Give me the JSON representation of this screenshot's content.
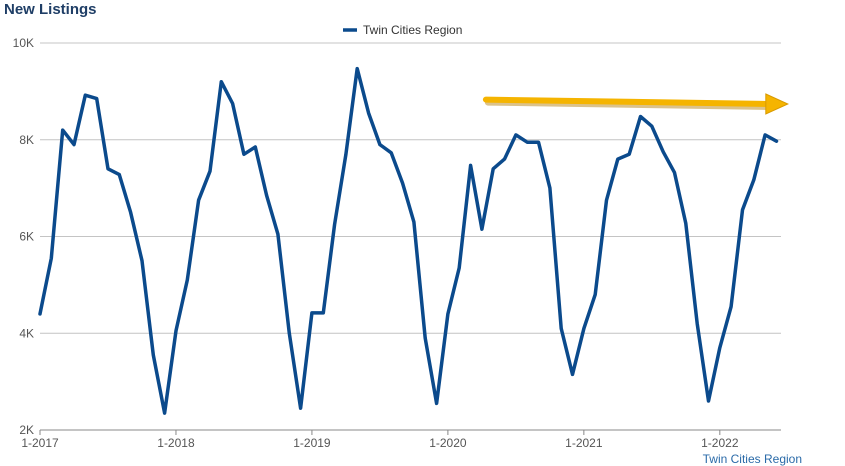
{
  "chart_data": {
    "type": "line",
    "title": "New Listings",
    "source": "Twin Cities Region",
    "xlabel": "",
    "ylabel": "",
    "ylim": [
      2000,
      10000
    ],
    "y_ticks": [
      {
        "value": 2000,
        "label": "2K"
      },
      {
        "value": 4000,
        "label": "4K"
      },
      {
        "value": 6000,
        "label": "6K"
      },
      {
        "value": 8000,
        "label": "8K"
      },
      {
        "value": 10000,
        "label": "10K"
      }
    ],
    "x_ticks": [
      {
        "index": 0,
        "label": "1-2017"
      },
      {
        "index": 12,
        "label": "1-2018"
      },
      {
        "index": 24,
        "label": "1-2019"
      },
      {
        "index": 36,
        "label": "1-2020"
      },
      {
        "index": 48,
        "label": "1-2021"
      },
      {
        "index": 60,
        "label": "1-2022"
      }
    ],
    "grid": true,
    "legend_position": "top-center",
    "series": [
      {
        "name": "Twin Cities Region",
        "color": "#0b4a8c",
        "x": [
          "1-2017",
          "2-2017",
          "3-2017",
          "4-2017",
          "5-2017",
          "6-2017",
          "7-2017",
          "8-2017",
          "9-2017",
          "10-2017",
          "11-2017",
          "12-2017",
          "1-2018",
          "2-2018",
          "3-2018",
          "4-2018",
          "5-2018",
          "6-2018",
          "7-2018",
          "8-2018",
          "9-2018",
          "10-2018",
          "11-2018",
          "12-2018",
          "1-2019",
          "2-2019",
          "3-2019",
          "4-2019",
          "5-2019",
          "6-2019",
          "7-2019",
          "8-2019",
          "9-2019",
          "10-2019",
          "11-2019",
          "12-2019",
          "1-2020",
          "2-2020",
          "3-2020",
          "4-2020",
          "5-2020",
          "6-2020",
          "7-2020",
          "8-2020",
          "9-2020",
          "10-2020",
          "11-2020",
          "12-2020",
          "1-2021",
          "2-2021",
          "3-2021",
          "4-2021",
          "5-2021",
          "6-2021",
          "7-2021",
          "8-2021",
          "9-2021",
          "10-2021",
          "11-2021",
          "12-2021",
          "1-2022",
          "2-2022",
          "3-2022",
          "4-2022",
          "5-2022",
          "6-2022"
        ],
        "values": [
          4400,
          5550,
          8200,
          7900,
          8920,
          8850,
          7400,
          7280,
          6500,
          5500,
          3550,
          2350,
          4050,
          5100,
          6750,
          7350,
          9200,
          8750,
          7700,
          7850,
          6850,
          6050,
          4000,
          2450,
          4420,
          4420,
          6250,
          7700,
          9470,
          8550,
          7900,
          7730,
          7100,
          6300,
          3900,
          2550,
          4400,
          5350,
          7470,
          6150,
          7400,
          7600,
          8100,
          7950,
          7950,
          7000,
          4100,
          3150,
          4100,
          4800,
          6750,
          7600,
          7700,
          8480,
          8280,
          7750,
          7320,
          6270,
          4200,
          2600,
          3700,
          4550,
          6550,
          7170,
          8100,
          7970
        ]
      }
    ],
    "annotations": [
      {
        "type": "arrow",
        "color": "#f5b400",
        "from_index": 39,
        "to_index": 66,
        "from_y": 8830,
        "to_y": 8740
      }
    ]
  }
}
